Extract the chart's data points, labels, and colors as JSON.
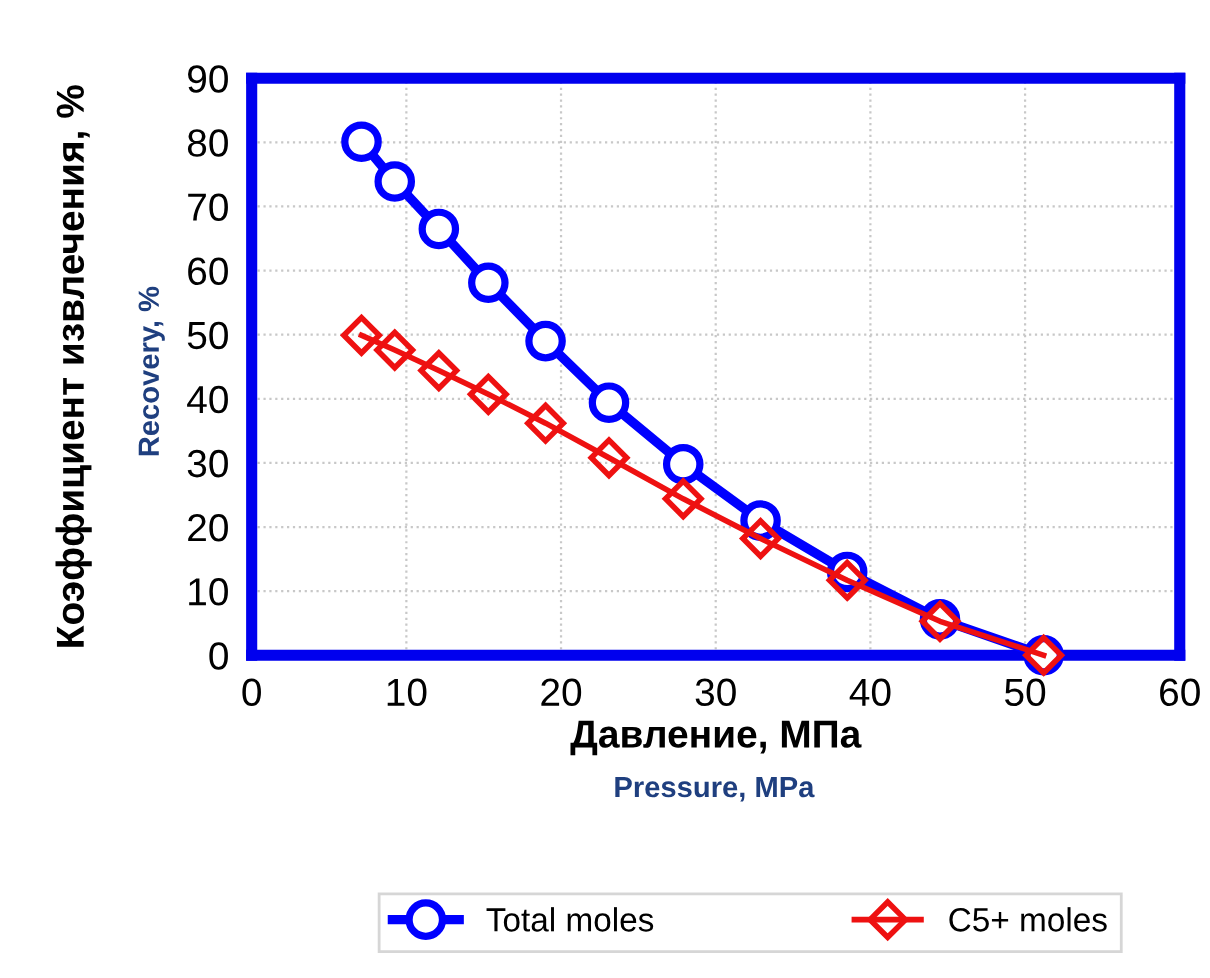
{
  "chart_data": {
    "type": "line",
    "xlabel": "Давление, МПа",
    "ylabel": "Коэффициент извлечения, %",
    "annotations": [
      "Pressure, MPa",
      "Recovery, %"
    ],
    "xlim": [
      0,
      60
    ],
    "xticks": [
      0,
      10,
      20,
      30,
      40,
      50,
      60
    ],
    "ylim": [
      0,
      90
    ],
    "yticks": [
      0,
      10,
      20,
      30,
      40,
      50,
      60,
      70,
      80,
      90
    ],
    "grid": true,
    "legend": "bottom",
    "line_style": "solid",
    "series": [
      {
        "name": "Total moles",
        "color": "#0000ff",
        "marker": "circle",
        "x": [
          7.1,
          9.25,
          12.1,
          15.3,
          19.0,
          23.1,
          27.9,
          32.9,
          38.5,
          44.5,
          51.2
        ],
        "values": [
          80.1,
          73.9,
          66.5,
          58.1,
          49.0,
          39.4,
          29.8,
          21.0,
          13.0,
          5.6,
          0
        ]
      },
      {
        "name": "C5+ moles",
        "color": "#ee1111",
        "marker": "diamond",
        "x": [
          7.1,
          9.25,
          12.1,
          15.3,
          19.0,
          23.1,
          27.9,
          32.9,
          38.5,
          44.5,
          51.2
        ],
        "values": [
          49.9,
          47.6,
          44.4,
          40.7,
          36.2,
          30.8,
          24.4,
          18.2,
          11.7,
          5.3,
          0
        ]
      }
    ]
  }
}
